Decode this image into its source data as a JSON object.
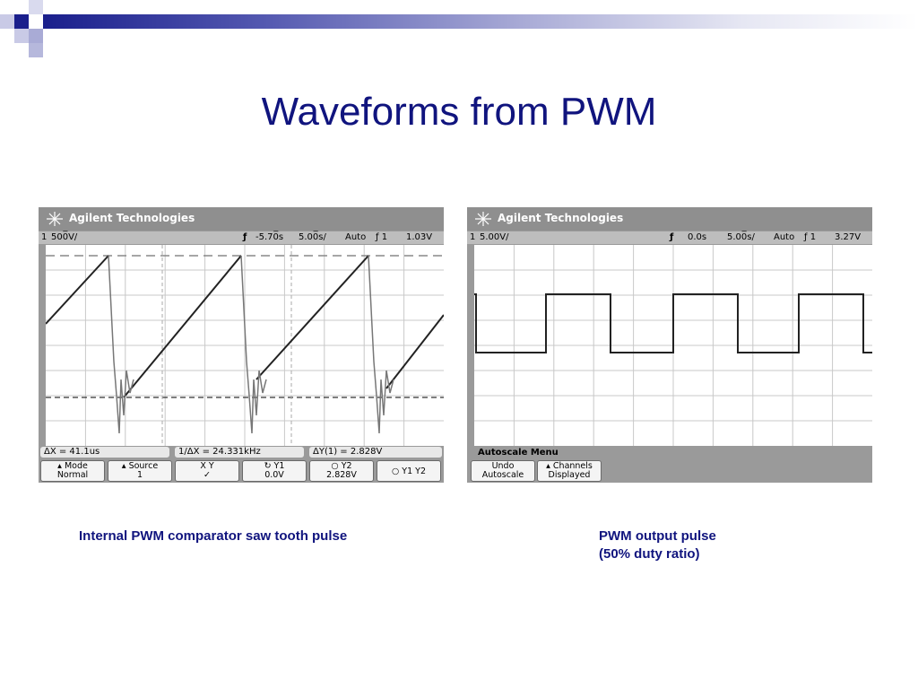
{
  "slide": {
    "title": "Waveforms from PWM",
    "colors": {
      "title": "#10147e",
      "header_dark": "#1a1f8c",
      "header_light": "#a9abd6"
    }
  },
  "scope_left": {
    "brand": "Agilent Technologies",
    "status": {
      "channel": "1",
      "volts_div": "500̅V/",
      "delay": "-5.70̅s",
      "time_div": "5.00̅s/",
      "mode": "Auto",
      "trigger": "ƒ 1",
      "level": "1.03V"
    },
    "measurements": {
      "delta_x": "ΔX = 41.1us",
      "inv_delta_x": "1/ΔX = 24.331kHz",
      "delta_y": "ΔY(1) = 2.828V"
    },
    "softkeys": [
      {
        "top": "▴ Mode",
        "bottom": "Normal"
      },
      {
        "top": "▴ Source",
        "bottom": "1"
      },
      {
        "top": "X    Y",
        "bottom": "✓"
      },
      {
        "top": "↻  Y1",
        "bottom": "0.0V"
      },
      {
        "top": "○  Y2",
        "bottom": "2.828V"
      },
      {
        "top": "○ Y1  Y2",
        "bottom": ""
      }
    ],
    "icon": "agilent-spark-icon"
  },
  "scope_right": {
    "brand": "Agilent Technologies",
    "status": {
      "channel": "1",
      "volts_div": "5.00V/",
      "delay": "0.0s",
      "time_div": "5.00̅s/",
      "mode": "Auto",
      "trigger": "ƒ 1",
      "level": "3.27V"
    },
    "menu_label": "Autoscale Menu",
    "softkeys": [
      {
        "top": "Undo",
        "bottom": "Autoscale"
      },
      {
        "top": "▴ Channels",
        "bottom": "Displayed"
      }
    ],
    "icon": "agilent-spark-icon"
  },
  "captions": {
    "left": "Internal PWM comparator saw tooth pulse",
    "right_line1": "PWM output pulse",
    "right_line2": "(50% duty ratio)"
  }
}
